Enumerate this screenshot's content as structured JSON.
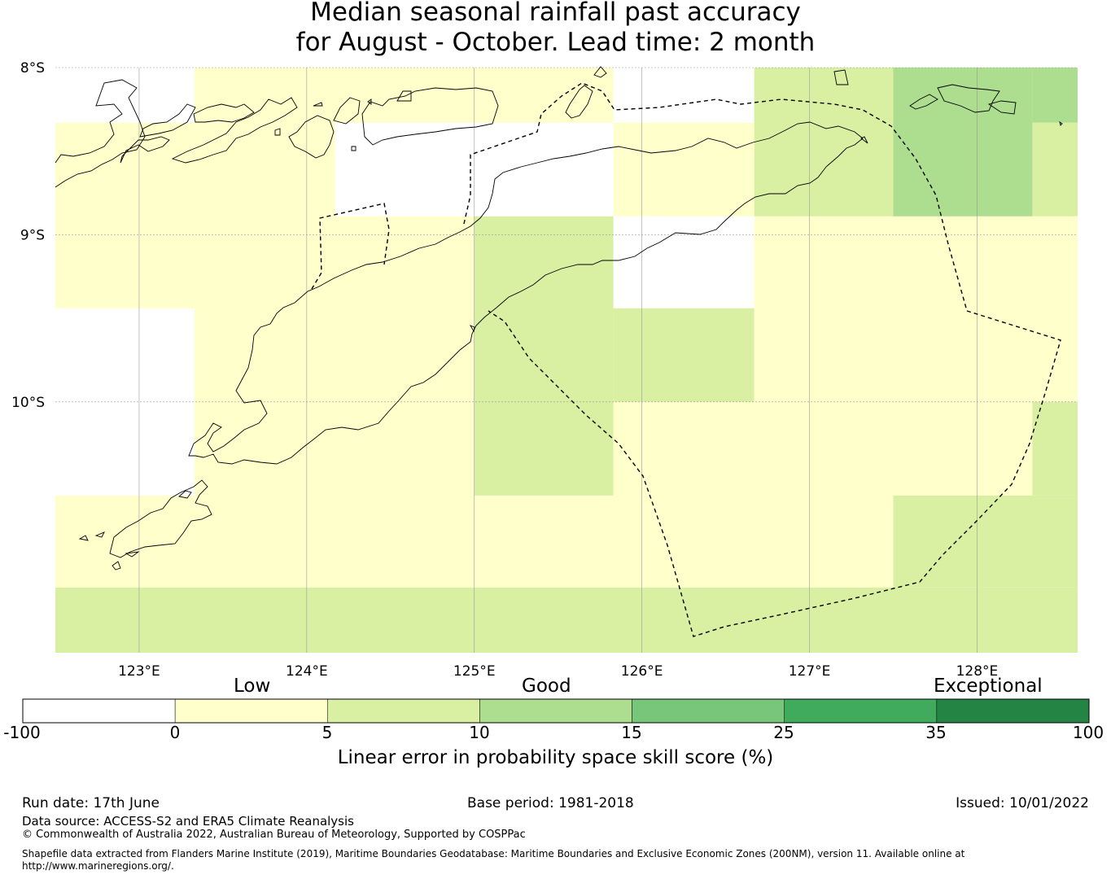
{
  "title": {
    "line1": "Median seasonal rainfall past accuracy",
    "line2": "for August - October. Lead time: 2 month"
  },
  "map": {
    "lat_labels": [
      "8°S",
      "9°S",
      "10°S"
    ],
    "lon_labels": [
      "123°E",
      "124°E",
      "125°E",
      "126°E",
      "127°E",
      "128°E"
    ],
    "lat_range": [
      -11.5,
      -8.0
    ],
    "lon_range": [
      122.5,
      128.6
    ],
    "grid_cells": [
      {
        "lat": [
          -8.33,
          -8.0
        ],
        "lon": [
          122.5,
          123.33
        ],
        "bin": -1
      },
      {
        "lat": [
          -8.33,
          -8.0
        ],
        "lon": [
          123.33,
          125.83
        ],
        "bin": 0
      },
      {
        "lat": [
          -8.33,
          -8.0
        ],
        "lon": [
          125.83,
          126.67
        ],
        "bin": -1
      },
      {
        "lat": [
          -8.89,
          -8.0
        ],
        "lon": [
          126.67,
          127.5
        ],
        "bin": 1
      },
      {
        "lat": [
          -8.89,
          -8.0
        ],
        "lon": [
          127.5,
          128.33
        ],
        "bin": 2
      },
      {
        "lat": [
          -8.33,
          -8.0
        ],
        "lon": [
          128.33,
          128.6
        ],
        "bin": 2
      },
      {
        "lat": [
          -8.89,
          -8.33
        ],
        "lon": [
          128.33,
          128.6
        ],
        "bin": 1
      },
      {
        "lat": [
          -9.44,
          -8.33
        ],
        "lon": [
          122.5,
          123.33
        ],
        "bin": 0
      },
      {
        "lat": [
          -8.89,
          -8.33
        ],
        "lon": [
          123.33,
          124.17
        ],
        "bin": 0
      },
      {
        "lat": [
          -8.89,
          -8.33
        ],
        "lon": [
          124.17,
          125.83
        ],
        "bin": -1
      },
      {
        "lat": [
          -8.89,
          -8.33
        ],
        "lon": [
          125.83,
          126.67
        ],
        "bin": 0
      },
      {
        "lat": [
          -10.0,
          -8.89
        ],
        "lon": [
          123.33,
          125.0
        ],
        "bin": 0
      },
      {
        "lat": [
          -10.56,
          -8.89
        ],
        "lon": [
          125.0,
          125.83
        ],
        "bin": 1
      },
      {
        "lat": [
          -9.44,
          -8.89
        ],
        "lon": [
          125.83,
          126.67
        ],
        "bin": -1
      },
      {
        "lat": [
          -10.0,
          -9.44
        ],
        "lon": [
          125.83,
          126.67
        ],
        "bin": 1
      },
      {
        "lat": [
          -10.0,
          -8.89
        ],
        "lon": [
          126.67,
          128.6
        ],
        "bin": 0
      },
      {
        "lat": [
          -10.56,
          -9.44
        ],
        "lon": [
          122.5,
          123.33
        ],
        "bin": -1
      },
      {
        "lat": [
          -10.56,
          -10.0
        ],
        "lon": [
          123.33,
          125.0
        ],
        "bin": 0
      },
      {
        "lat": [
          -10.56,
          -10.0
        ],
        "lon": [
          125.83,
          128.33
        ],
        "bin": 0
      },
      {
        "lat": [
          -10.56,
          -10.0
        ],
        "lon": [
          128.33,
          128.6
        ],
        "bin": 1
      },
      {
        "lat": [
          -11.11,
          -10.56
        ],
        "lon": [
          122.5,
          127.5
        ],
        "bin": 0
      },
      {
        "lat": [
          -11.11,
          -10.56
        ],
        "lon": [
          127.5,
          128.6
        ],
        "bin": 1
      },
      {
        "lat": [
          -11.5,
          -11.11
        ],
        "lon": [
          122.5,
          128.6
        ],
        "bin": 1
      }
    ]
  },
  "legend": {
    "categories": [
      "Low",
      "Good",
      "Exceptional"
    ],
    "ticks": [
      "-100",
      "0",
      "5",
      "10",
      "15",
      "25",
      "35",
      "100"
    ],
    "colors": [
      "#ffffff",
      "#ffffcc",
      "#d9f0a3",
      "#addd8e",
      "#78c679",
      "#41ab5d",
      "#238443"
    ],
    "label": "Linear error in probability space skill score (%)"
  },
  "footer": {
    "run_date": "Run date: 17th June",
    "base_period": "Base period: 1981-2018",
    "issued": "Issued: 10/01/2022",
    "data_source": "Data source: ACCESS-S2 and ERA5 Climate Reanalysis",
    "copyright": "© Commonwealth of Australia 2022, Australian Bureau of Meteorology, Supported by COSPPac",
    "shapefile_line1": "Shapefile data extracted from Flanders Marine Institute (2019), Maritime Boundaries Geodatabase: Maritime Boundaries and Exclusive Economic Zones (200NM), version 11. Available online at",
    "shapefile_line2": "http://www.marineregions.org/."
  }
}
